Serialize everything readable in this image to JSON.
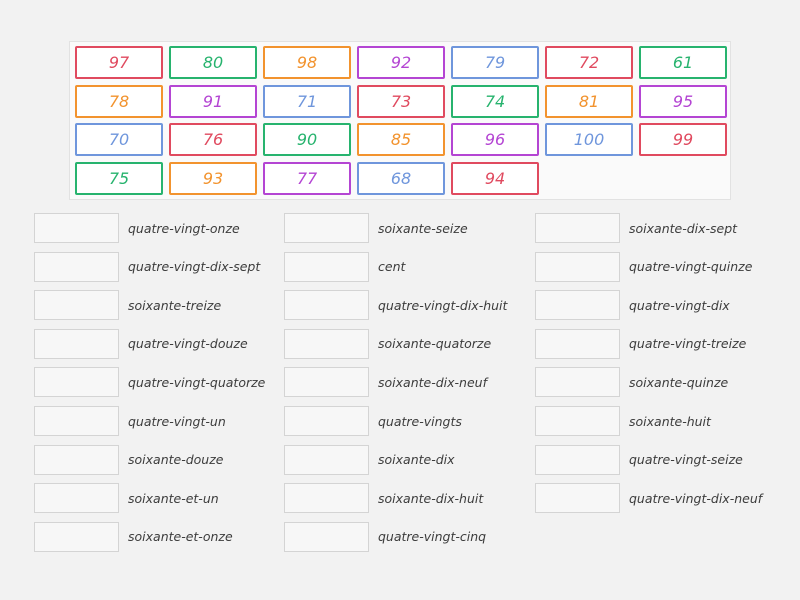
{
  "tiles": [
    {
      "label": "97",
      "color": "#e04a5f"
    },
    {
      "label": "80",
      "color": "#27b36e"
    },
    {
      "label": "98",
      "color": "#f2932e"
    },
    {
      "label": "92",
      "color": "#b445d3"
    },
    {
      "label": "79",
      "color": "#6f96dc"
    },
    {
      "label": "72",
      "color": "#e04a5f"
    },
    {
      "label": "61",
      "color": "#27b36e"
    },
    {
      "label": "78",
      "color": "#f2932e"
    },
    {
      "label": "91",
      "color": "#b445d3"
    },
    {
      "label": "71",
      "color": "#6f96dc"
    },
    {
      "label": "73",
      "color": "#e04a5f"
    },
    {
      "label": "74",
      "color": "#27b36e"
    },
    {
      "label": "81",
      "color": "#f2932e"
    },
    {
      "label": "95",
      "color": "#b445d3"
    },
    {
      "label": "70",
      "color": "#6f96dc"
    },
    {
      "label": "76",
      "color": "#e04a5f"
    },
    {
      "label": "90",
      "color": "#27b36e"
    },
    {
      "label": "85",
      "color": "#f2932e"
    },
    {
      "label": "96",
      "color": "#b445d3"
    },
    {
      "label": "100",
      "color": "#6f96dc"
    },
    {
      "label": "99",
      "color": "#e04a5f"
    },
    {
      "label": "75",
      "color": "#27b36e"
    },
    {
      "label": "93",
      "color": "#f2932e"
    },
    {
      "label": "77",
      "color": "#b445d3"
    },
    {
      "label": "68",
      "color": "#6f96dc"
    },
    {
      "label": "94",
      "color": "#e04a5f"
    }
  ],
  "columns": [
    {
      "items": [
        "quatre-vingt-onze",
        "quatre-vingt-dix-sept",
        "soixante-treize",
        "quatre-vingt-douze",
        "quatre-vingt-quatorze",
        "quatre-vingt-un",
        "soixante-douze",
        "soixante-et-un",
        "soixante-et-onze"
      ]
    },
    {
      "items": [
        "soixante-seize",
        "cent",
        "quatre-vingt-dix-huit",
        "soixante-quatorze",
        "soixante-dix-neuf",
        "quatre-vingts",
        "soixante-dix",
        "soixante-dix-huit",
        "quatre-vingt-cinq"
      ]
    },
    {
      "items": [
        "soixante-dix-sept",
        "quatre-vingt-quinze",
        "quatre-vingt-dix",
        "quatre-vingt-treize",
        "soixante-quinze",
        "soixante-huit",
        "quatre-vingt-seize",
        "quatre-vingt-dix-neuf"
      ]
    }
  ]
}
